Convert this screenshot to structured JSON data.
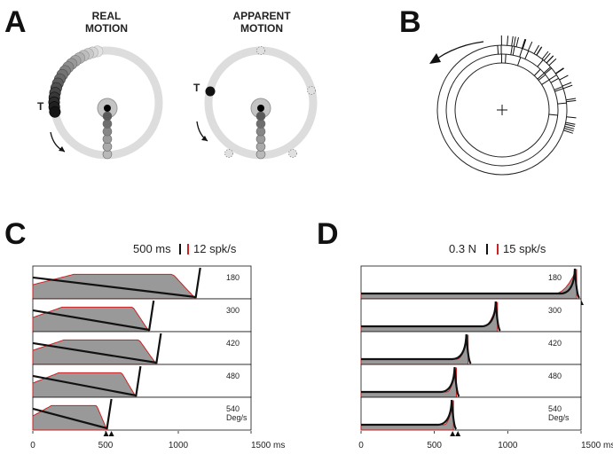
{
  "panel_a": {
    "letter": "A",
    "real_title_line1": "REAL",
    "real_title_line2": "MOTION",
    "apparent_title_line1": "APPARENT",
    "apparent_title_line2": "MOTION",
    "target_label_real": "T",
    "target_label_apparent": "T"
  },
  "panel_b": {
    "letter": "B"
  },
  "panel_c": {
    "letter": "C",
    "scale_time": "500 ms",
    "scale_rate": "12 spk/s",
    "speed_unit": "Deg/s",
    "rows": [
      {
        "speed": "180",
        "end_ms": 1120
      },
      {
        "speed": "300",
        "end_ms": 800
      },
      {
        "speed": "420",
        "end_ms": 850
      },
      {
        "speed": "480",
        "end_ms": 710
      },
      {
        "speed": "540",
        "end_ms": 510
      }
    ],
    "x_ticks": [
      "0",
      "500",
      "1000",
      "1500 ms"
    ]
  },
  "panel_d": {
    "letter": "D",
    "scale_force": "0.3 N",
    "scale_rate": "15 spk/s",
    "speed_unit": "Deg/s",
    "rows": [
      {
        "speed": "180",
        "end_ms": 1470
      },
      {
        "speed": "300",
        "end_ms": 930
      },
      {
        "speed": "420",
        "end_ms": 730
      },
      {
        "speed": "480",
        "end_ms": 650
      },
      {
        "speed": "540",
        "end_ms": 630
      }
    ],
    "x_ticks": [
      "0",
      "500",
      "1000",
      "1500 ms"
    ]
  },
  "colors": {
    "fill_gray": "#999999",
    "trace_red": "#cc2222",
    "trace_black": "#111111",
    "ring_gray": "#dddddd"
  }
}
